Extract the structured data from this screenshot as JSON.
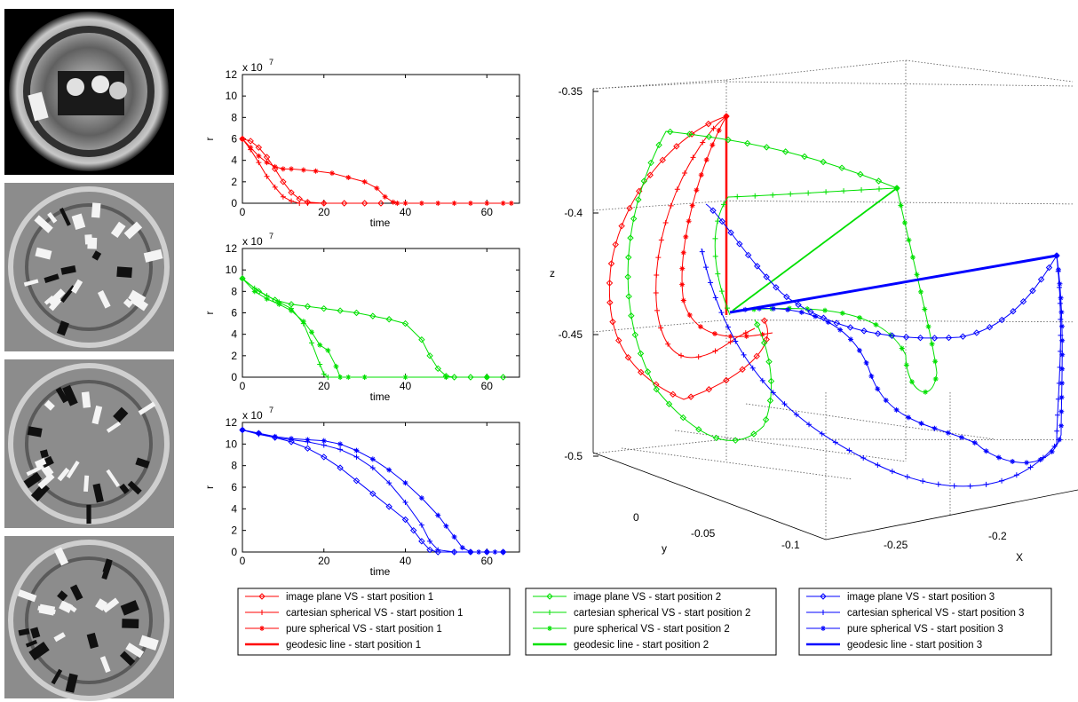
{
  "images": [
    {
      "name": "fisheye-original",
      "tone": "photo"
    },
    {
      "name": "fisheye-error-1",
      "tone": "gray"
    },
    {
      "name": "fisheye-error-2",
      "tone": "gray"
    },
    {
      "name": "fisheye-error-3",
      "tone": "gray"
    }
  ],
  "chart_data": [
    {
      "type": "line",
      "color": "#ff0000",
      "xlabel": "time",
      "ylabel": "r",
      "exponent_label": "x 10",
      "exponent": "7",
      "xlim": [
        0,
        68
      ],
      "ylim": [
        0,
        12
      ],
      "xticks": [
        "0",
        "20",
        "40",
        "60"
      ],
      "yticks": [
        "0",
        "2",
        "4",
        "6",
        "8",
        "10",
        "12"
      ],
      "series": [
        {
          "name": "image plane VS - start position 1",
          "marker": "diamond",
          "x": [
            0,
            2,
            4,
            6,
            8,
            10,
            12,
            14,
            16,
            20,
            25,
            30,
            34
          ],
          "y": [
            6,
            5.8,
            5.2,
            4.3,
            3.2,
            2.0,
            1.0,
            0.4,
            0.1,
            0,
            0,
            0,
            0
          ]
        },
        {
          "name": "cartesian spherical VS - start position 1",
          "marker": "plus",
          "x": [
            0,
            2,
            4,
            6,
            8,
            10,
            12,
            14,
            16,
            20
          ],
          "y": [
            6,
            5.0,
            3.8,
            2.5,
            1.5,
            0.6,
            0.2,
            0,
            0,
            0
          ]
        },
        {
          "name": "pure spherical VS - start position 1",
          "marker": "star",
          "x": [
            0,
            2,
            4,
            6,
            8,
            10,
            12,
            15,
            18,
            22,
            26,
            30,
            33,
            35,
            37,
            38,
            40,
            44,
            48,
            52,
            56,
            60,
            64,
            66
          ],
          "y": [
            6,
            5.2,
            4.4,
            3.8,
            3.4,
            3.2,
            3.2,
            3.1,
            3.0,
            2.8,
            2.4,
            2.0,
            1.4,
            0.6,
            0.1,
            0,
            0,
            0,
            0,
            0,
            0,
            0,
            0,
            0
          ]
        }
      ]
    },
    {
      "type": "line",
      "color": "#00e000",
      "xlabel": "time",
      "ylabel": "r",
      "exponent_label": "x 10",
      "exponent": "7",
      "xlim": [
        0,
        68
      ],
      "ylim": [
        0,
        12
      ],
      "xticks": [
        "0",
        "20",
        "40",
        "60"
      ],
      "yticks": [
        "0",
        "2",
        "4",
        "6",
        "8",
        "10",
        "12"
      ],
      "series": [
        {
          "name": "image plane VS - start position 2",
          "marker": "diamond",
          "x": [
            0,
            4,
            8,
            12,
            16,
            20,
            24,
            28,
            32,
            36,
            40,
            44,
            46,
            48,
            50,
            52,
            56,
            60,
            64
          ],
          "y": [
            9.2,
            8.0,
            7.2,
            6.8,
            6.6,
            6.4,
            6.2,
            6.0,
            5.7,
            5.4,
            5.0,
            3.5,
            2.0,
            0.8,
            0.1,
            0,
            0,
            0,
            0
          ]
        },
        {
          "name": "cartesian spherical VS - start position 2",
          "marker": "plus",
          "x": [
            0,
            3,
            6,
            9,
            12,
            15,
            17,
            19,
            20,
            21,
            24,
            30,
            40,
            50,
            60
          ],
          "y": [
            9.2,
            8.3,
            7.6,
            7.0,
            6.4,
            5.0,
            3.2,
            1.2,
            0.3,
            0,
            0,
            0,
            0,
            0,
            0
          ]
        },
        {
          "name": "pure spherical VS - start position 2",
          "marker": "star",
          "x": [
            0,
            3,
            6,
            9,
            12,
            15,
            17,
            19,
            21,
            23,
            24,
            26,
            30,
            40,
            50,
            60
          ],
          "y": [
            9.2,
            8.0,
            7.3,
            6.8,
            6.2,
            5.2,
            4.2,
            3.0,
            2.5,
            1.0,
            0,
            0,
            0,
            0,
            0,
            0
          ]
        }
      ]
    },
    {
      "type": "line",
      "color": "#0000ff",
      "xlabel": "time",
      "ylabel": "r",
      "exponent_label": "x 10",
      "exponent": "7",
      "xlim": [
        0,
        68
      ],
      "ylim": [
        0,
        12
      ],
      "xticks": [
        "0",
        "20",
        "40",
        "60"
      ],
      "yticks": [
        "0",
        "2",
        "4",
        "6",
        "8",
        "10",
        "12"
      ],
      "series": [
        {
          "name": "image plane VS - start position 3",
          "marker": "diamond",
          "x": [
            0,
            4,
            8,
            12,
            16,
            20,
            24,
            28,
            32,
            36,
            40,
            42,
            44,
            46,
            48,
            52,
            56,
            60,
            64
          ],
          "y": [
            11.3,
            11.0,
            10.6,
            10.2,
            9.6,
            8.8,
            7.8,
            6.6,
            5.4,
            4.2,
            3.0,
            2.0,
            1.0,
            0.2,
            0,
            0,
            0,
            0,
            0
          ]
        },
        {
          "name": "cartesian spherical VS - start position 3",
          "marker": "plus",
          "x": [
            0,
            4,
            8,
            12,
            16,
            20,
            24,
            28,
            32,
            36,
            40,
            44,
            46,
            48,
            52,
            56,
            60,
            64
          ],
          "y": [
            11.3,
            10.9,
            10.6,
            10.4,
            10.2,
            9.9,
            9.5,
            8.8,
            7.8,
            6.4,
            4.6,
            2.5,
            1.0,
            0.2,
            0,
            0,
            0,
            0
          ]
        },
        {
          "name": "pure spherical VS - start position 3",
          "marker": "star",
          "x": [
            0,
            4,
            8,
            12,
            16,
            20,
            24,
            28,
            32,
            36,
            40,
            44,
            48,
            50,
            52,
            54,
            56,
            58,
            60,
            62,
            64
          ],
          "y": [
            11.3,
            11.0,
            10.7,
            10.5,
            10.4,
            10.3,
            10.0,
            9.4,
            8.6,
            7.6,
            6.4,
            5.0,
            3.4,
            2.4,
            1.4,
            0.4,
            0,
            0,
            0,
            0,
            0
          ]
        }
      ]
    },
    {
      "type": "line3d",
      "xlabel": "X",
      "ylabel": "y",
      "zlabel": "z",
      "zticks": [
        "-0.35",
        "-0.4",
        "-0.45",
        "-0.5"
      ],
      "yticks": [
        "0",
        "-0.05",
        "-0.1"
      ],
      "xticks": [
        "-0.25",
        "-0.2"
      ]
    }
  ],
  "legends": [
    {
      "color": "#ff0000",
      "entries": [
        {
          "label": "image plane VS - start position 1",
          "marker": "diamond"
        },
        {
          "label": "cartesian spherical VS - start position 1",
          "marker": "plus"
        },
        {
          "label": "pure spherical VS - start position 1",
          "marker": "star"
        },
        {
          "label": "geodesic line - start position 1",
          "marker": "bold"
        }
      ]
    },
    {
      "color": "#00e000",
      "entries": [
        {
          "label": "image plane VS - start position 2",
          "marker": "diamond"
        },
        {
          "label": "cartesian spherical VS - start position 2",
          "marker": "plus"
        },
        {
          "label": "pure spherical VS - start position 2",
          "marker": "star"
        },
        {
          "label": "geodesic line - start position 2",
          "marker": "bold"
        }
      ]
    },
    {
      "color": "#0000ff",
      "entries": [
        {
          "label": "image plane VS - start position 3",
          "marker": "diamond"
        },
        {
          "label": "cartesian spherical VS - start position 3",
          "marker": "plus"
        },
        {
          "label": "pure spherical VS - start position 3",
          "marker": "star"
        },
        {
          "label": "geodesic line - start position 3",
          "marker": "bold"
        }
      ]
    }
  ]
}
